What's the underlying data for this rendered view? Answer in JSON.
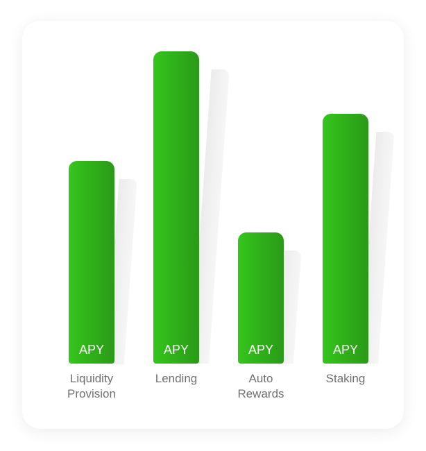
{
  "chart_data": {
    "type": "bar",
    "categories": [
      "Liquidity Provision",
      "Lending",
      "Auto Rewards",
      "Staking"
    ],
    "values": [
      65,
      100,
      42,
      80
    ],
    "bar_label": "APY",
    "color": "#35c51c",
    "ylim": [
      0,
      100
    ]
  }
}
